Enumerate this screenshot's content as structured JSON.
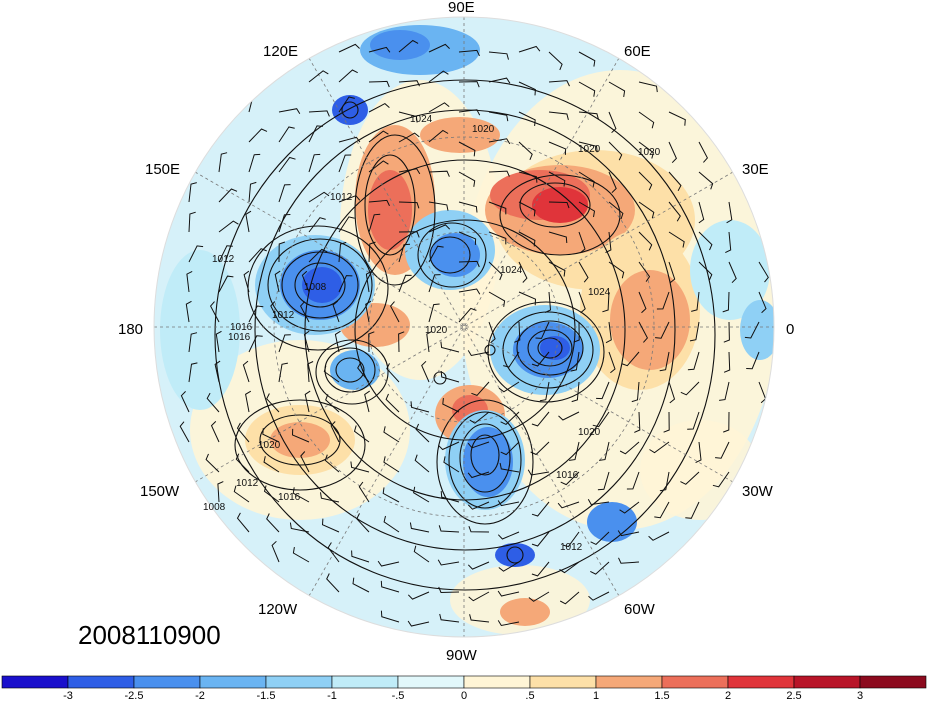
{
  "timestamp": "2008110900",
  "longitude_labels": [
    "90E",
    "60E",
    "30E",
    "0",
    "30W",
    "60W",
    "90W",
    "120W",
    "150W",
    "180",
    "150E",
    "120E"
  ],
  "isobar_labels": [
    "1024",
    "1020",
    "1020",
    "1024",
    "1024",
    "1020",
    "1020",
    "1016",
    "1012",
    "1008",
    "1012",
    "1016",
    "1020",
    "1012",
    "1016",
    "1012",
    "1016",
    "1008",
    "1012",
    "1020"
  ],
  "colorbar": {
    "tick_labels": [
      "-3",
      "-2.5",
      "-2",
      "-1.5",
      "-1",
      "-.5",
      "0",
      ".5",
      "1",
      "1.5",
      "2",
      "2.5",
      "3"
    ],
    "colors": [
      "#1a10cc",
      "#2e5ee6",
      "#4a90ee",
      "#6ab4f2",
      "#8fd0f5",
      "#c0ecf8",
      "#e2f8fb",
      "#fff5d6",
      "#fde0a8",
      "#f5a878",
      "#ec6f5a",
      "#e0343a",
      "#b81428",
      "#8c0a1e"
    ]
  }
}
